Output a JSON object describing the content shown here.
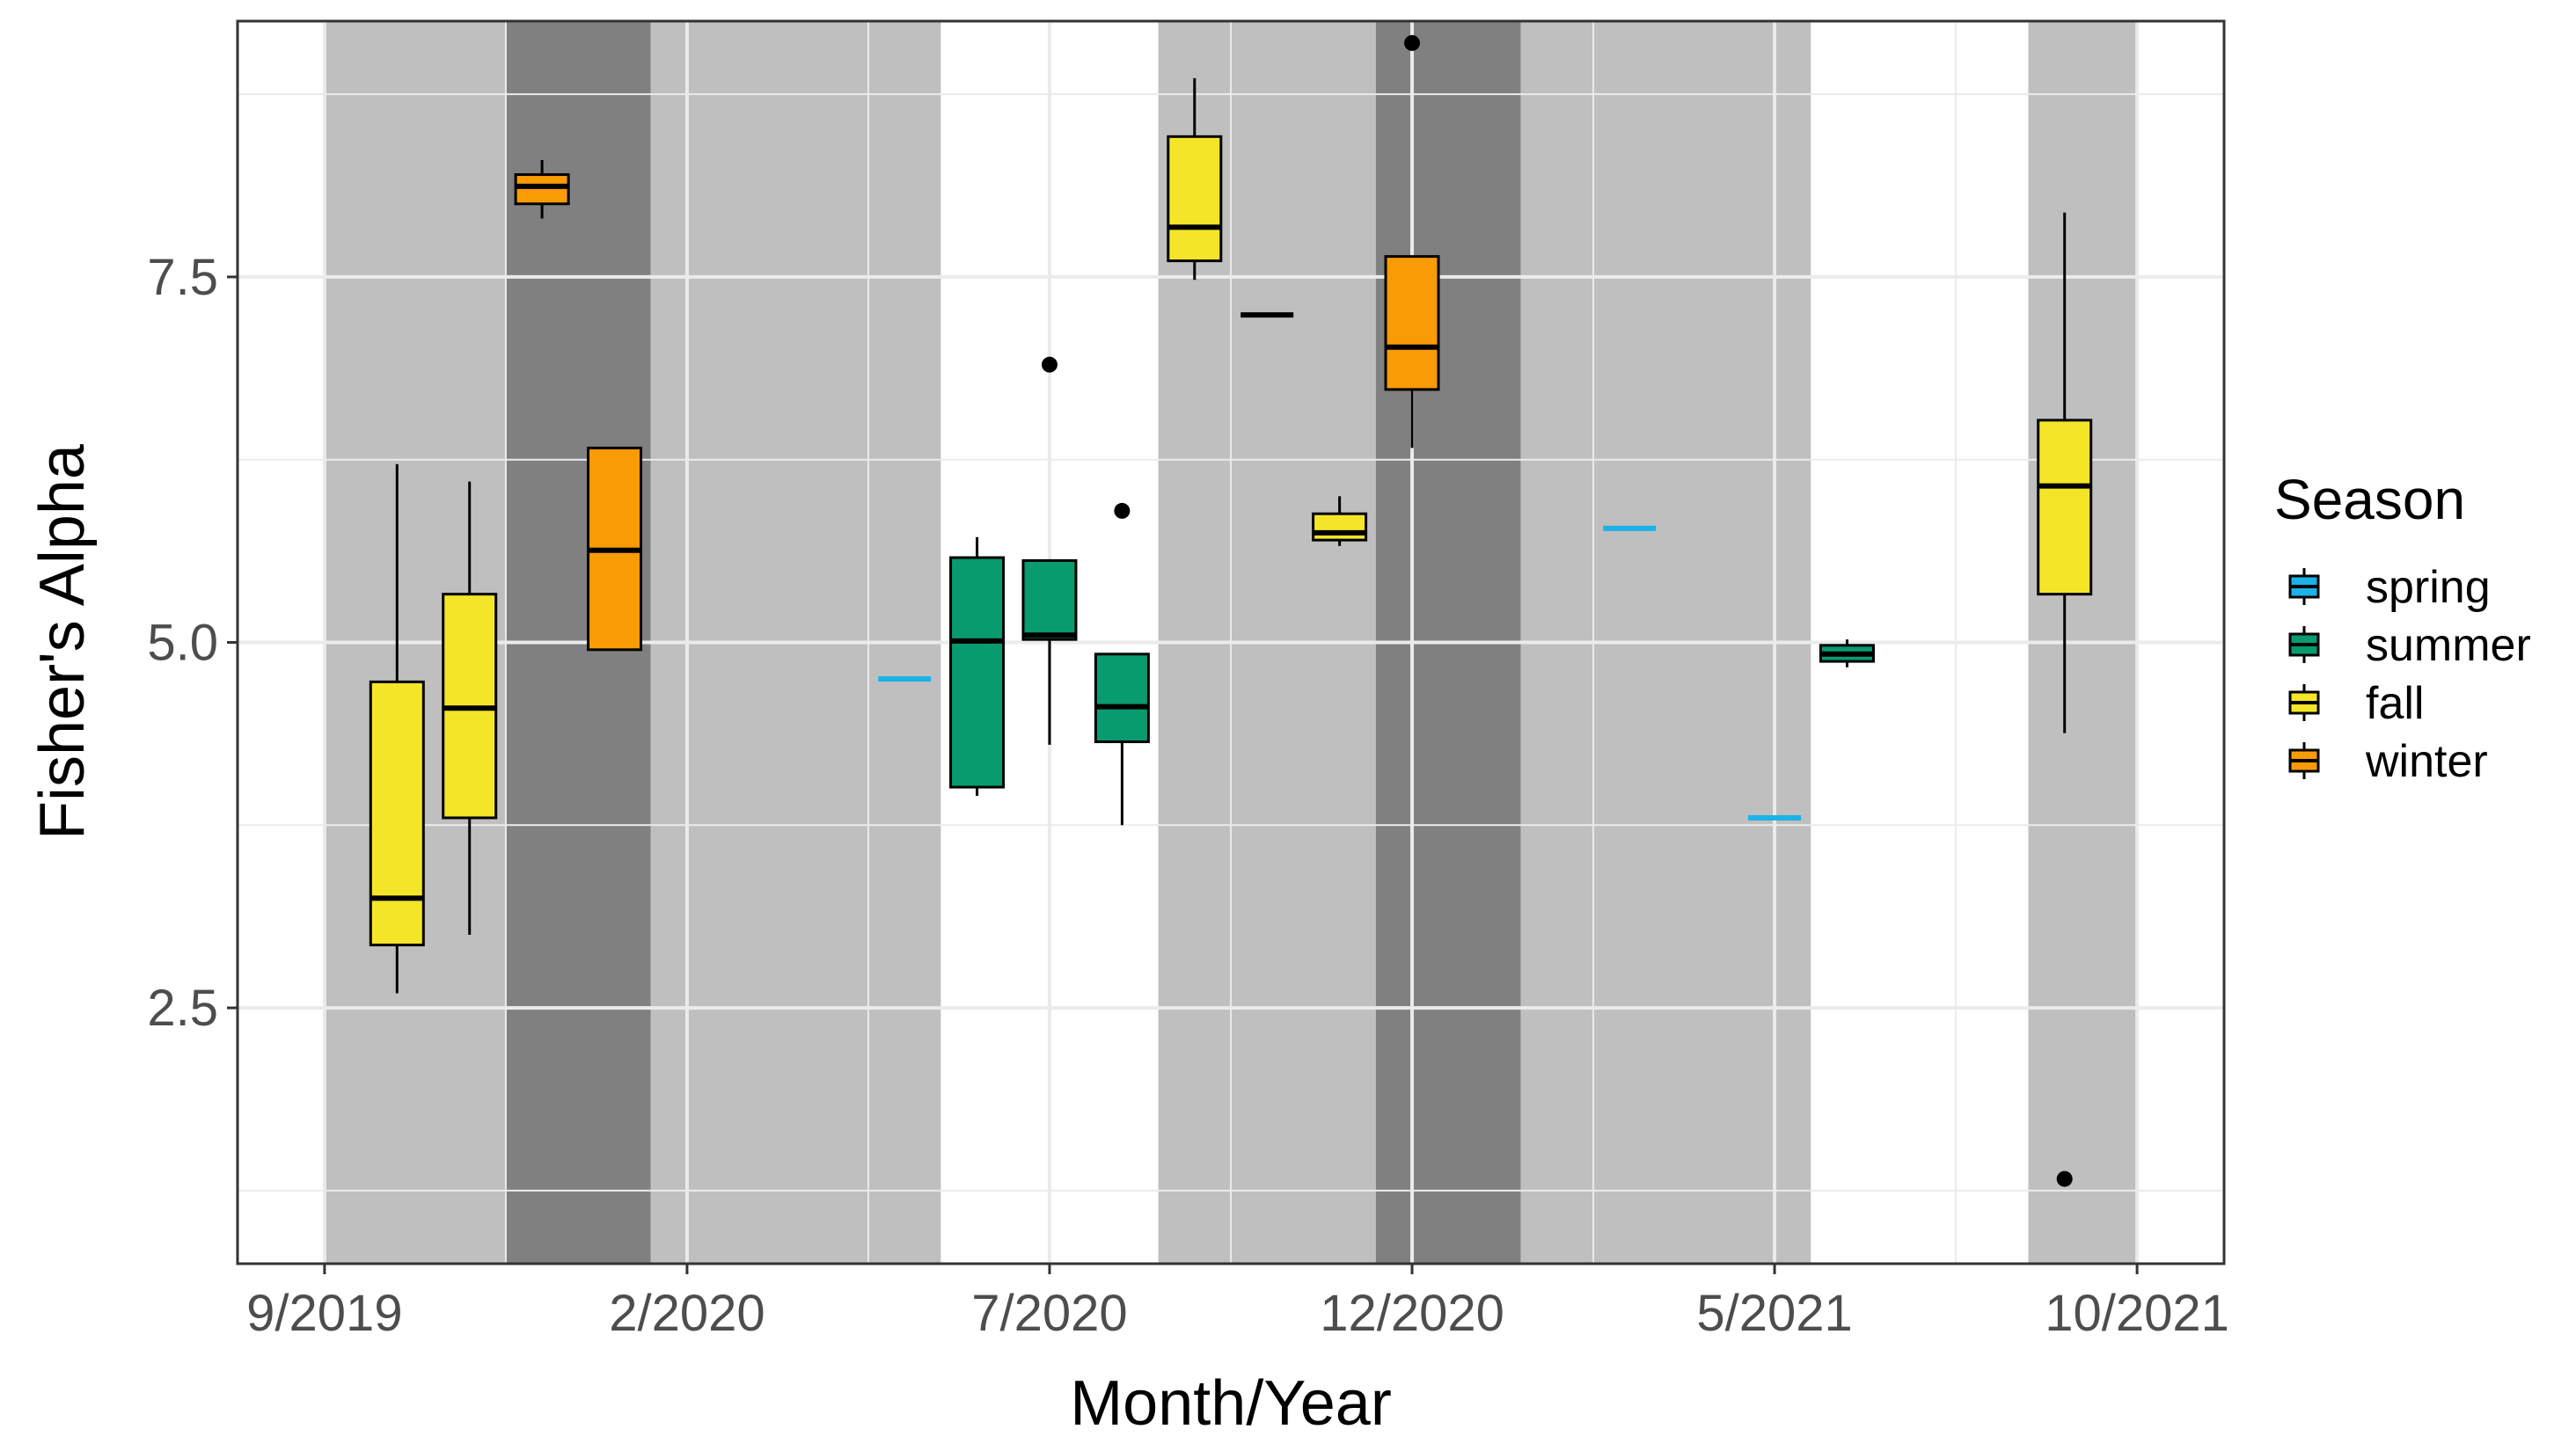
{
  "chart_data": {
    "type": "boxplot",
    "xlabel": "Month/Year",
    "ylabel": "Fisher's Alpha",
    "x_tick_labels": [
      "9/2019",
      "2/2020",
      "7/2020",
      "12/2020",
      "5/2021",
      "10/2021"
    ],
    "x_tick_months": [
      0,
      5,
      10,
      15,
      20,
      25
    ],
    "y_tick_labels": [
      "2.5",
      "5.0",
      "7.5"
    ],
    "y_ticks": [
      2.5,
      5.0,
      7.5
    ],
    "xlim": [
      -1.2,
      26.2
    ],
    "ylim": [
      0.75,
      9.25
    ],
    "x_unit": "months since 9/2019",
    "grid": true,
    "legend": {
      "title": "Season",
      "position": "right",
      "entries": [
        {
          "label": "spring",
          "color": "#1AB2E8"
        },
        {
          "label": "summer",
          "color": "#079B6E"
        },
        {
          "label": "fall",
          "color": "#F5E529"
        },
        {
          "label": "winter",
          "color": "#F89B04"
        }
      ]
    },
    "background_bands": [
      {
        "from": 0,
        "to": 2.5,
        "shade": "light"
      },
      {
        "from": 2.5,
        "to": 4.5,
        "shade": "dark"
      },
      {
        "from": 4.5,
        "to": 8.5,
        "shade": "light"
      },
      {
        "from": 11.5,
        "to": 14.5,
        "shade": "light"
      },
      {
        "from": 14.5,
        "to": 16.5,
        "shade": "dark"
      },
      {
        "from": 16.5,
        "to": 20.5,
        "shade": "light"
      },
      {
        "from": 23.5,
        "to": 25.0,
        "shade": "light"
      }
    ],
    "boxes": [
      {
        "month": 1,
        "season": "fall",
        "lower": 2.6,
        "q1": 2.93,
        "median": 3.25,
        "q3": 4.73,
        "upper": 6.22
      },
      {
        "month": 2,
        "season": "fall",
        "lower": 3.0,
        "q1": 3.8,
        "median": 4.55,
        "q3": 5.33,
        "upper": 6.1
      },
      {
        "month": 3,
        "season": "winter",
        "lower": 7.9,
        "q1": 8.0,
        "median": 8.12,
        "q3": 8.2,
        "upper": 8.3
      },
      {
        "month": 4,
        "season": "winter",
        "lower": 4.95,
        "q1": 4.95,
        "median": 5.63,
        "q3": 6.33,
        "upper": 6.33
      },
      {
        "month": 8,
        "season": "spring",
        "lower": 4.75,
        "q1": 4.75,
        "median": 4.75,
        "q3": 4.75,
        "upper": 4.75
      },
      {
        "month": 9,
        "season": "summer",
        "lower": 3.95,
        "q1": 4.01,
        "median": 5.01,
        "q3": 5.58,
        "upper": 5.72
      },
      {
        "month": 10,
        "season": "summer",
        "lower": 4.3,
        "q1": 5.02,
        "median": 5.05,
        "q3": 5.56,
        "upper": 5.56,
        "outliers": [
          6.9
        ]
      },
      {
        "month": 11,
        "season": "summer",
        "lower": 3.75,
        "q1": 4.32,
        "median": 4.56,
        "q3": 4.92,
        "upper": 4.92,
        "outliers": [
          5.9
        ]
      },
      {
        "month": 12,
        "season": "fall",
        "lower": 7.48,
        "q1": 7.61,
        "median": 7.84,
        "q3": 8.46,
        "upper": 8.86
      },
      {
        "month": 13,
        "season": "fall",
        "lower": 7.24,
        "q1": 7.24,
        "median": 7.24,
        "q3": 7.24,
        "upper": 7.24
      },
      {
        "month": 14,
        "season": "fall",
        "lower": 5.66,
        "q1": 5.7,
        "median": 5.75,
        "q3": 5.88,
        "upper": 6.0
      },
      {
        "month": 15,
        "season": "winter",
        "lower": 6.33,
        "q1": 6.73,
        "median": 7.02,
        "q3": 7.64,
        "upper": 7.64,
        "outliers": [
          9.1
        ]
      },
      {
        "month": 18,
        "season": "spring",
        "lower": 5.78,
        "q1": 5.78,
        "median": 5.78,
        "q3": 5.78,
        "upper": 5.78
      },
      {
        "month": 20,
        "season": "spring",
        "lower": 3.8,
        "q1": 3.8,
        "median": 3.8,
        "q3": 3.8,
        "upper": 3.8
      },
      {
        "month": 21,
        "season": "summer",
        "lower": 4.83,
        "q1": 4.87,
        "median": 4.92,
        "q3": 4.98,
        "upper": 5.02
      },
      {
        "month": 24,
        "season": "fall",
        "lower": 4.38,
        "q1": 5.33,
        "median": 6.07,
        "q3": 6.52,
        "upper": 7.94,
        "outliers": [
          1.33
        ]
      }
    ]
  }
}
